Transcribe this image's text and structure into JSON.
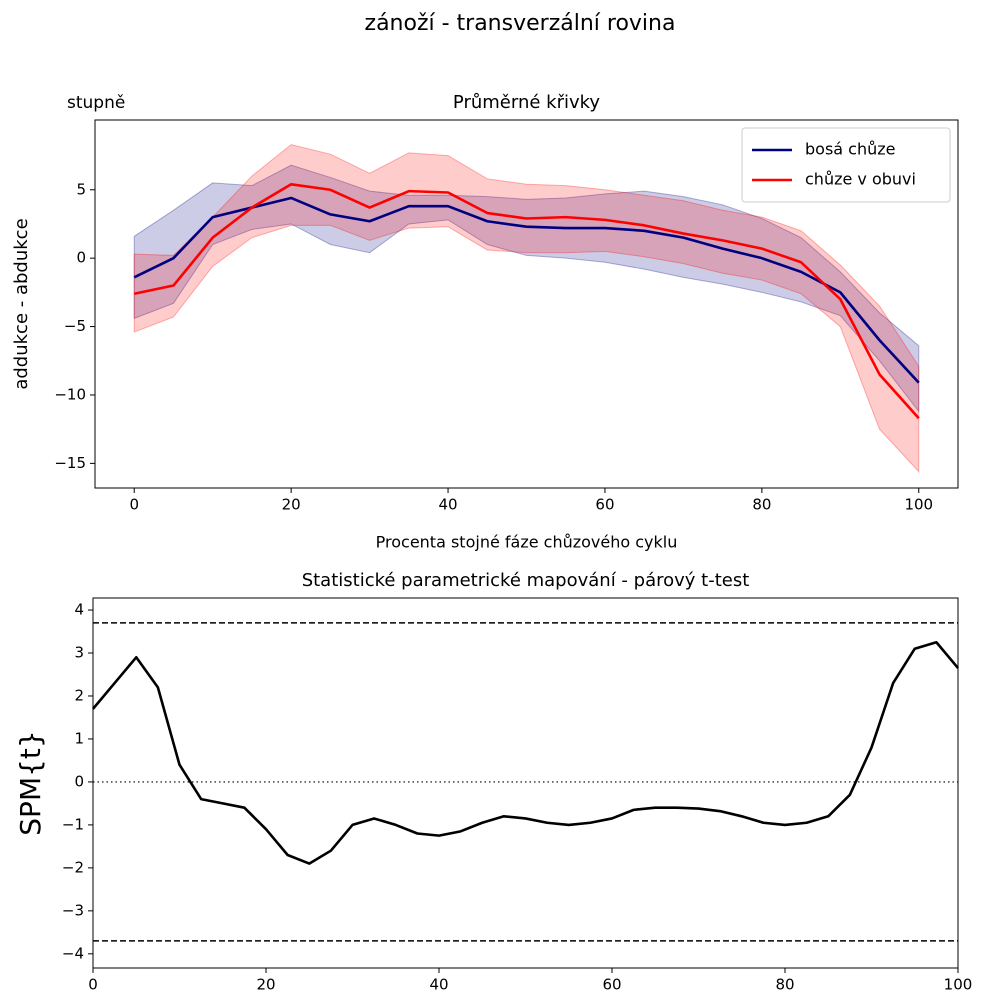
{
  "figure_title": "zánoží  - transverzální rovina",
  "chart_data": [
    {
      "type": "line",
      "title": "Průměrné křivky",
      "y_unit": "stupně",
      "x_label": "Procenta stojné fáze chůzového cyklu",
      "y_label": "addukce - abdukce",
      "x": [
        0,
        5,
        10,
        15,
        20,
        25,
        30,
        35,
        40,
        45,
        50,
        55,
        60,
        65,
        70,
        75,
        80,
        85,
        90,
        95,
        100
      ],
      "series": [
        {
          "name": "bosá chůze",
          "color": "#000080",
          "values": [
            -1.4,
            0,
            3.0,
            3.7,
            4.4,
            3.2,
            2.7,
            3.8,
            3.8,
            2.7,
            2.3,
            2.2,
            2.2,
            2.0,
            1.5,
            0.7,
            0.0,
            -1.0,
            -2.5,
            -6.0,
            -9.1
          ],
          "upper": [
            1.6,
            3.5,
            5.5,
            5.3,
            6.8,
            5.9,
            4.9,
            4.6,
            4.6,
            4.5,
            4.3,
            4.4,
            4.7,
            4.9,
            4.5,
            3.9,
            2.9,
            1.5,
            -1.0,
            -4.0,
            -6.4
          ],
          "lower": [
            -4.4,
            -3.3,
            1.0,
            2.1,
            2.5,
            1.0,
            0.4,
            2.5,
            2.8,
            1.0,
            0.2,
            0,
            -0.3,
            -0.8,
            -1.4,
            -1.9,
            -2.5,
            -3.2,
            -4.2,
            -7.5,
            -11.2
          ]
        },
        {
          "name": "chůze v obuvi",
          "color": "#ff0000",
          "values": [
            -2.6,
            -2.0,
            1.5,
            3.7,
            5.4,
            5.0,
            3.7,
            4.9,
            4.8,
            3.3,
            2.9,
            3.0,
            2.8,
            2.4,
            1.8,
            1.3,
            0.7,
            -0.3,
            -3.0,
            -8.5,
            -11.7
          ],
          "upper": [
            0.3,
            0.2,
            3.0,
            6.0,
            8.3,
            7.6,
            6.2,
            7.7,
            7.5,
            5.8,
            5.4,
            5.3,
            5.0,
            4.6,
            4.2,
            3.5,
            3.0,
            2.0,
            -0.5,
            -3.5,
            -7.9
          ],
          "lower": [
            -5.4,
            -4.3,
            -0.6,
            1.5,
            2.4,
            2.4,
            1.3,
            2.2,
            2.3,
            0.6,
            0.4,
            0.4,
            0.5,
            0.1,
            -0.4,
            -1.1,
            -1.6,
            -2.6,
            -5.0,
            -12.5,
            -15.6
          ]
        }
      ],
      "xlim": [
        -5,
        105
      ],
      "ylim": [
        -16.8,
        10.1
      ],
      "xticks": [
        0,
        20,
        40,
        60,
        80,
        100
      ],
      "yticks": [
        {
          "value": -15,
          "label": "−15"
        },
        {
          "value": -10,
          "label": "−10"
        },
        {
          "value": -5,
          "label": "−5"
        },
        0,
        5
      ],
      "legend": "upper right",
      "band_opacity": 0.2
    },
    {
      "type": "line",
      "title": "Statistické parametrické mapování - párový t-test",
      "y_label": "SPM{t}",
      "x": [
        0,
        2.5,
        5,
        7.5,
        10,
        12.5,
        15,
        17.5,
        20,
        22.5,
        25,
        27.5,
        30,
        32.5,
        35,
        37.5,
        40,
        42.5,
        45,
        47.5,
        50,
        52.5,
        55,
        57.5,
        60,
        62.5,
        65,
        67.5,
        70,
        72.5,
        75,
        77.5,
        80,
        82.5,
        85,
        87.5,
        90,
        92.5,
        95,
        97.5,
        100
      ],
      "series": [
        {
          "color": "#000000",
          "values": [
            1.7,
            2.3,
            2.9,
            2.2,
            0.4,
            -0.4,
            -0.5,
            -0.6,
            -1.1,
            -1.7,
            -1.9,
            -1.6,
            -1.0,
            -0.85,
            -1.0,
            -1.2,
            -1.25,
            -1.15,
            -0.95,
            -0.8,
            -0.85,
            -0.95,
            -1.0,
            -0.95,
            -0.85,
            -0.65,
            -0.6,
            -0.6,
            -0.62,
            -0.68,
            -0.8,
            -0.95,
            -1.0,
            -0.95,
            -0.8,
            -0.3,
            0.8,
            2.3,
            3.1,
            3.25,
            2.65
          ]
        }
      ],
      "thresholds": [
        3.7,
        -3.7
      ],
      "reference_line": 0,
      "xlim": [
        0,
        100
      ],
      "ylim": [
        -4.33,
        4.28
      ],
      "xticks": [
        0,
        20,
        40,
        60,
        80,
        100
      ],
      "yticks": [
        {
          "value": -4,
          "label": "−4"
        },
        {
          "value": -3,
          "label": "−3"
        },
        {
          "value": -2,
          "label": "−2"
        },
        {
          "value": -1,
          "label": "−1"
        },
        0,
        1,
        2,
        3,
        4
      ]
    }
  ]
}
